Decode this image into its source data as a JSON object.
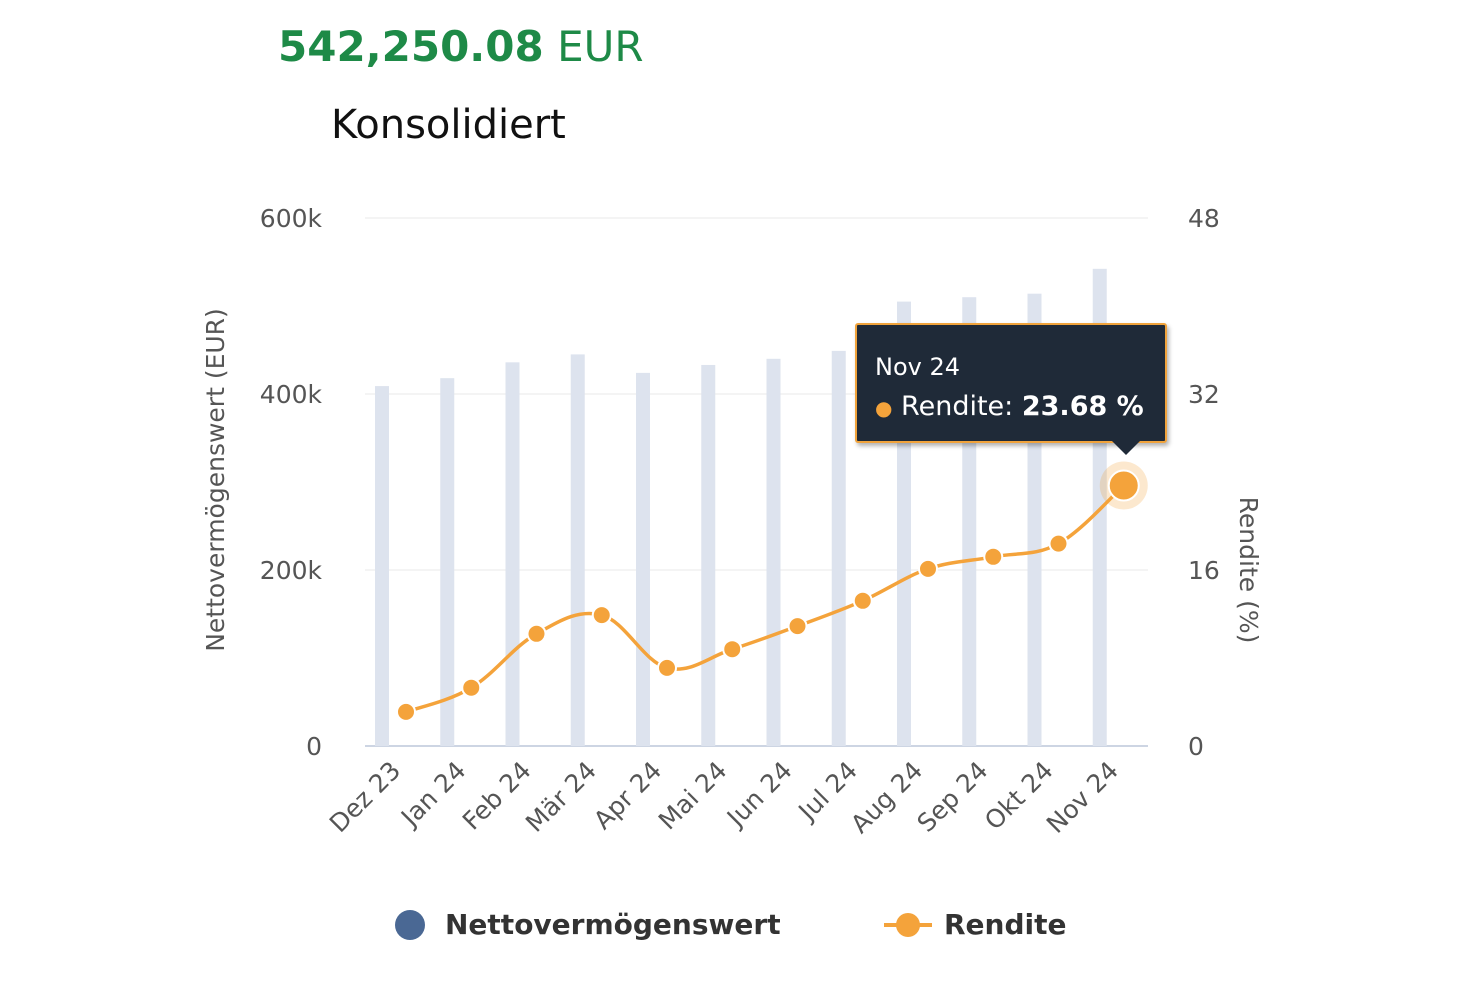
{
  "header": {
    "amount_value": "542,250.08",
    "amount_currency": "EUR",
    "title": "Konsolidiert"
  },
  "chart_data": {
    "type": "bar+line",
    "categories": [
      "Dez 23",
      "Jan 24",
      "Feb 24",
      "Mär 24",
      "Apr 24",
      "Mai 24",
      "Jun 24",
      "Jul 24",
      "Aug 24",
      "Sep 24",
      "Okt 24",
      "Nov 24"
    ],
    "series": [
      {
        "name": "Nettovermögenswert",
        "type": "bar",
        "axis": "left",
        "color": "#dde3ee",
        "legend_color": "#4a6894",
        "values": [
          409000,
          418000,
          436000,
          445000,
          424000,
          433000,
          440000,
          449000,
          505000,
          510000,
          514000,
          542250
        ]
      },
      {
        "name": "Rendite",
        "type": "line",
        "axis": "right",
        "color": "#f4a33b",
        "values": [
          3.1,
          5.3,
          10.2,
          11.9,
          7.1,
          8.8,
          10.9,
          13.2,
          16.1,
          17.2,
          18.4,
          23.68
        ]
      }
    ],
    "ylabel_left": "Nettovermögenswert (EUR)",
    "ylabel_right": "Rendite (%)",
    "ylim_left": [
      0,
      600000
    ],
    "ylim_right": [
      0,
      48
    ],
    "yticks_left": [
      "0",
      "200k",
      "400k",
      "600k"
    ],
    "yticks_right": [
      "0",
      "16",
      "32",
      "48"
    ],
    "grid": true,
    "legend_position": "bottom",
    "tooltip": {
      "category": "Nov 24",
      "label": "Rendite:",
      "value": "23.68 %"
    }
  }
}
